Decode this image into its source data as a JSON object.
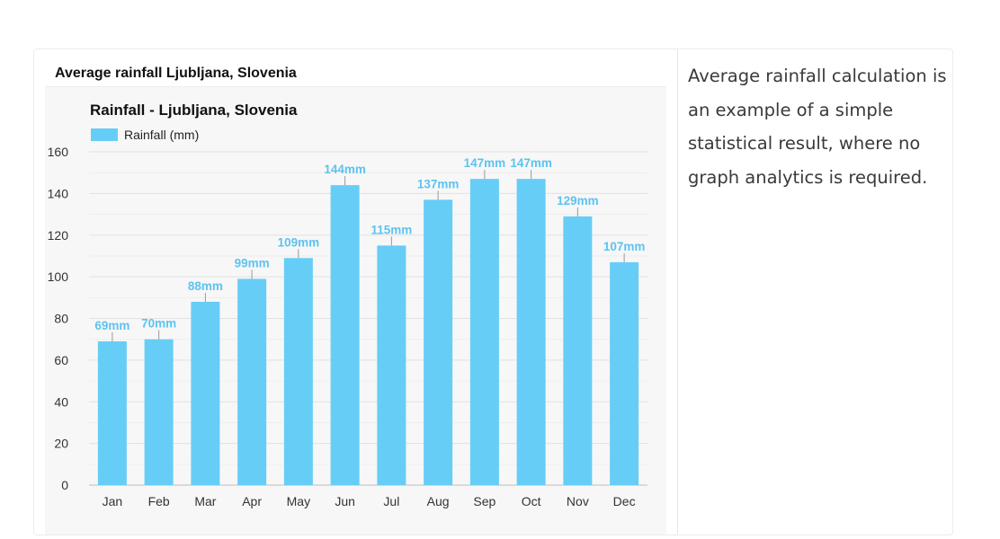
{
  "card": {
    "title": "Average rainfall Ljubljana, Slovenia"
  },
  "side": {
    "text": "Average rainfall calculation is an example of a simple statistical result, where no graph analytics is required."
  },
  "chart_data": {
    "type": "bar",
    "title": "Rainfall - Ljubljana, Slovenia",
    "xlabel": "",
    "ylabel": "",
    "legend": [
      "Rainfall (mm)"
    ],
    "legend_position": "top-left",
    "categories": [
      "Jan",
      "Feb",
      "Mar",
      "Apr",
      "May",
      "Jun",
      "Jul",
      "Aug",
      "Sep",
      "Oct",
      "Nov",
      "Dec"
    ],
    "series": [
      {
        "name": "Rainfall (mm)",
        "values": [
          69,
          70,
          88,
          99,
          109,
          144,
          115,
          137,
          147,
          147,
          129,
          107
        ],
        "labels": [
          "69mm",
          "70mm",
          "88mm",
          "99mm",
          "109mm",
          "144mm",
          "115mm",
          "137mm",
          "147mm",
          "147mm",
          "129mm",
          "107mm"
        ]
      }
    ],
    "ylim": [
      0,
      160
    ],
    "yticks": [
      0,
      20,
      40,
      60,
      80,
      100,
      120,
      140,
      160
    ],
    "grid": true,
    "colors": {
      "bar": "#66cdf7",
      "label": "#5cc3ef",
      "grid": "#e2e2e2"
    }
  }
}
